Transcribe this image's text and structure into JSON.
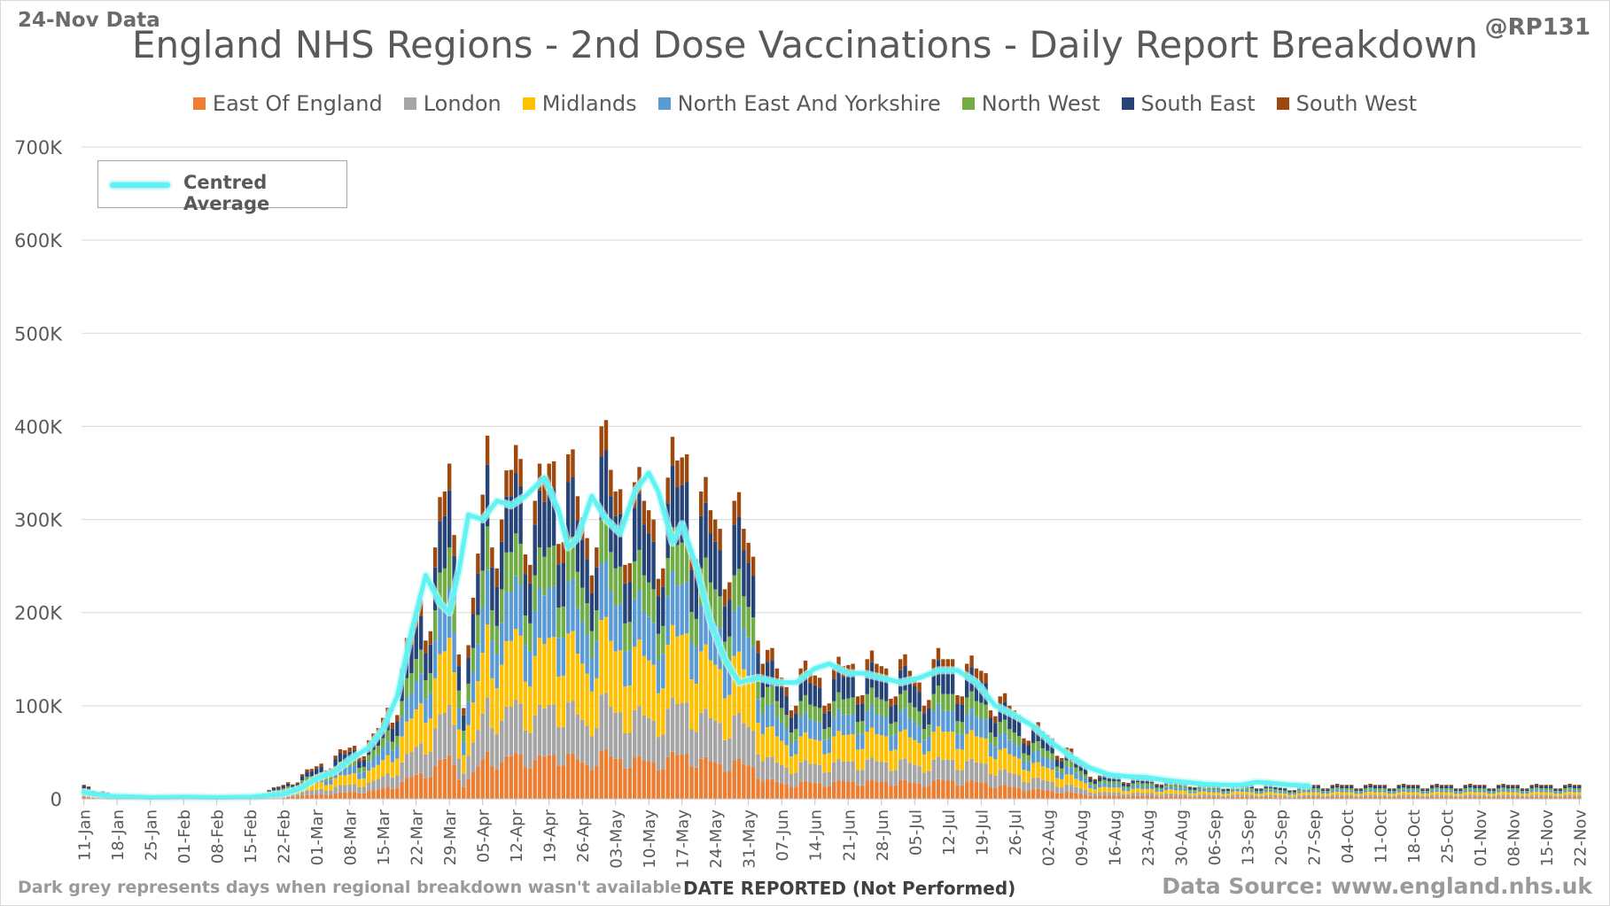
{
  "header": {
    "data_date": "24-Nov Data",
    "author": "@RP131"
  },
  "chart_data": {
    "type": "bar",
    "stacked": true,
    "title": "England NHS Regions - 2nd Dose Vaccinations - Daily Report Breakdown",
    "xlabel": "DATE REPORTED (Not Performed)",
    "ylabel": "",
    "ylim": [
      0,
      700000
    ],
    "y_ticks": [
      0,
      100000,
      200000,
      300000,
      400000,
      500000,
      600000,
      700000
    ],
    "y_tick_labels": [
      "0",
      "100K",
      "200K",
      "300K",
      "400K",
      "500K",
      "600K",
      "700K"
    ],
    "x_tick_labels": [
      "11-Jan",
      "18-Jan",
      "25-Jan",
      "01-Feb",
      "08-Feb",
      "15-Feb",
      "22-Feb",
      "01-Mar",
      "08-Mar",
      "15-Mar",
      "22-Mar",
      "29-Mar",
      "05-Apr",
      "12-Apr",
      "19-Apr",
      "26-Apr",
      "03-May",
      "10-May",
      "17-May",
      "24-May",
      "31-May",
      "07-Jun",
      "14-Jun",
      "21-Jun",
      "28-Jun",
      "05-Jul",
      "12-Jul",
      "19-Jul",
      "26-Jul",
      "02-Aug",
      "09-Aug",
      "16-Aug",
      "23-Aug",
      "30-Aug",
      "06-Sep",
      "13-Sep",
      "20-Sep",
      "27-Sep",
      "04-Oct",
      "11-Oct",
      "18-Oct",
      "25-Oct",
      "01-Nov",
      "08-Nov",
      "15-Nov",
      "22-Nov"
    ],
    "grid": true,
    "legend_placement": "top",
    "series": [
      {
        "name": "East Of England",
        "color": "#ed7d31",
        "share": 0.13
      },
      {
        "name": "London",
        "color": "#a5a5a5",
        "share": 0.15
      },
      {
        "name": "Midlands",
        "color": "#ffc000",
        "share": 0.2
      },
      {
        "name": "North East And Yorkshire",
        "color": "#5b9bd5",
        "share": 0.15
      },
      {
        "name": "North West",
        "color": "#70ad47",
        "share": 0.12
      },
      {
        "name": "South East",
        "color": "#264478",
        "share": 0.17
      },
      {
        "name": "South West",
        "color": "#9e480e",
        "share": 0.08
      }
    ],
    "unavailable_color": "#404040",
    "average_series": {
      "name": "Centred Average",
      "color": "#5ff3f3"
    },
    "daily_totals_approx": [
      [
        0,
        15000
      ],
      [
        7,
        3000
      ],
      [
        14,
        2000
      ],
      [
        21,
        3000
      ],
      [
        28,
        2000
      ],
      [
        35,
        2500
      ],
      [
        42,
        15000
      ],
      [
        49,
        35000
      ],
      [
        56,
        55000
      ],
      [
        61,
        65000
      ],
      [
        66,
        120000
      ],
      [
        70,
        200000
      ],
      [
        73,
        240000
      ],
      [
        77,
        360000
      ],
      [
        80,
        130000
      ],
      [
        82,
        200000
      ],
      [
        85,
        390000
      ],
      [
        88,
        300000
      ],
      [
        91,
        380000
      ],
      [
        95,
        320000
      ],
      [
        98,
        360000
      ],
      [
        102,
        370000
      ],
      [
        106,
        280000
      ],
      [
        109,
        400000
      ],
      [
        112,
        330000
      ],
      [
        116,
        340000
      ],
      [
        120,
        300000
      ],
      [
        124,
        360000
      ],
      [
        127,
        370000
      ],
      [
        130,
        330000
      ],
      [
        134,
        290000
      ],
      [
        137,
        320000
      ],
      [
        141,
        260000
      ],
      [
        144,
        160000
      ],
      [
        148,
        120000
      ],
      [
        151,
        140000
      ],
      [
        155,
        130000
      ],
      [
        158,
        140000
      ],
      [
        162,
        145000
      ],
      [
        165,
        150000
      ],
      [
        169,
        140000
      ],
      [
        172,
        150000
      ],
      [
        176,
        125000
      ],
      [
        179,
        150000
      ],
      [
        183,
        150000
      ],
      [
        186,
        145000
      ],
      [
        190,
        135000
      ],
      [
        193,
        110000
      ],
      [
        197,
        90000
      ],
      [
        200,
        80000
      ],
      [
        204,
        65000
      ],
      [
        207,
        55000
      ],
      [
        211,
        35000
      ],
      [
        214,
        25000
      ],
      [
        218,
        25000
      ],
      [
        221,
        22000
      ],
      [
        225,
        22000
      ],
      [
        228,
        20000
      ],
      [
        232,
        18000
      ],
      [
        235,
        16000
      ],
      [
        239,
        14000
      ],
      [
        242,
        16000
      ],
      [
        246,
        15000
      ],
      [
        249,
        15000
      ],
      [
        253,
        12000
      ],
      [
        256,
        13000
      ],
      [
        259,
        15000
      ]
    ],
    "centred_average_approx": [
      [
        0,
        7000
      ],
      [
        5,
        3000
      ],
      [
        14,
        1500
      ],
      [
        21,
        2000
      ],
      [
        28,
        1500
      ],
      [
        35,
        2000
      ],
      [
        42,
        5000
      ],
      [
        46,
        12000
      ],
      [
        49,
        22000
      ],
      [
        53,
        30000
      ],
      [
        56,
        42000
      ],
      [
        60,
        55000
      ],
      [
        63,
        75000
      ],
      [
        66,
        110000
      ],
      [
        69,
        180000
      ],
      [
        72,
        240000
      ],
      [
        75,
        210000
      ],
      [
        77,
        200000
      ],
      [
        79,
        245000
      ],
      [
        81,
        305000
      ],
      [
        84,
        300000
      ],
      [
        87,
        320000
      ],
      [
        90,
        315000
      ],
      [
        93,
        325000
      ],
      [
        97,
        345000
      ],
      [
        100,
        310000
      ],
      [
        102,
        270000
      ],
      [
        104,
        280000
      ],
      [
        107,
        325000
      ],
      [
        110,
        300000
      ],
      [
        113,
        285000
      ],
      [
        116,
        330000
      ],
      [
        119,
        350000
      ],
      [
        121,
        330000
      ],
      [
        124,
        275000
      ],
      [
        126,
        295000
      ],
      [
        129,
        250000
      ],
      [
        132,
        190000
      ],
      [
        135,
        150000
      ],
      [
        138,
        125000
      ],
      [
        142,
        130000
      ],
      [
        146,
        125000
      ],
      [
        150,
        125000
      ],
      [
        154,
        140000
      ],
      [
        157,
        145000
      ],
      [
        161,
        135000
      ],
      [
        164,
        135000
      ],
      [
        168,
        130000
      ],
      [
        172,
        125000
      ],
      [
        176,
        130000
      ],
      [
        180,
        138000
      ],
      [
        184,
        138000
      ],
      [
        188,
        125000
      ],
      [
        192,
        100000
      ],
      [
        196,
        90000
      ],
      [
        200,
        78000
      ],
      [
        204,
        60000
      ],
      [
        208,
        45000
      ],
      [
        212,
        33000
      ],
      [
        216,
        26000
      ],
      [
        220,
        24000
      ],
      [
        224,
        23000
      ],
      [
        228,
        20000
      ],
      [
        232,
        18000
      ],
      [
        236,
        16000
      ],
      [
        240,
        15000
      ],
      [
        244,
        15000
      ],
      [
        247,
        18000
      ],
      [
        250,
        17000
      ],
      [
        254,
        15000
      ],
      [
        258,
        14000
      ]
    ]
  },
  "inset_legend": {
    "label": "Centred Average"
  },
  "footer": {
    "note": "Dark grey represents days when regional breakdown wasn't available",
    "axis_title": "DATE REPORTED (Not Performed)",
    "source": "Data Source: www.england.nhs.uk"
  }
}
